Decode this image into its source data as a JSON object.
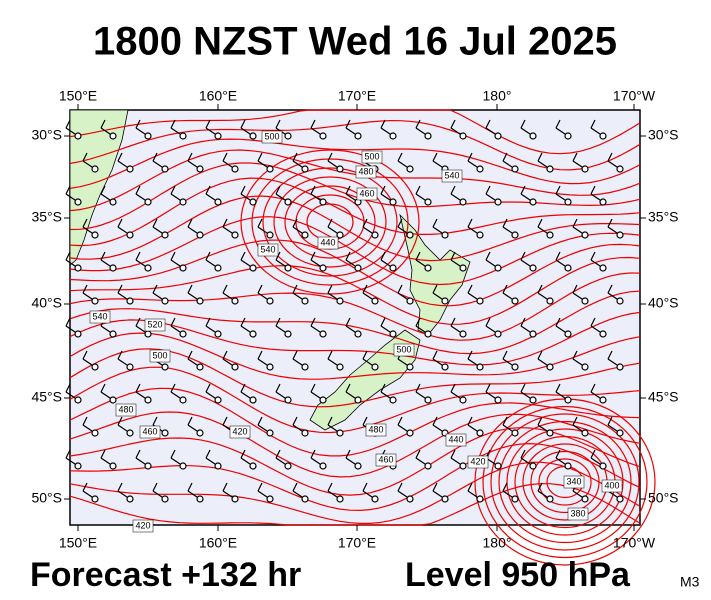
{
  "header": {
    "title": "1800 NZST Wed 16 Jul 2025"
  },
  "map": {
    "lon_labels": [
      "150°E",
      "160°E",
      "170°E",
      "180°",
      "170°W"
    ],
    "lat_labels": [
      "30°S",
      "35°S",
      "40°S",
      "45°S",
      "50°S"
    ],
    "contour_labels": [
      "500",
      "500",
      "480",
      "460",
      "440",
      "540",
      "540",
      "520",
      "500",
      "480",
      "460",
      "420",
      "480",
      "460",
      "440",
      "420",
      "500",
      "540",
      "340",
      "380",
      "400",
      "420"
    ]
  },
  "footer": {
    "forecast": "Forecast +132 hr",
    "level": "Level 950 hPa",
    "model": "M3"
  }
}
